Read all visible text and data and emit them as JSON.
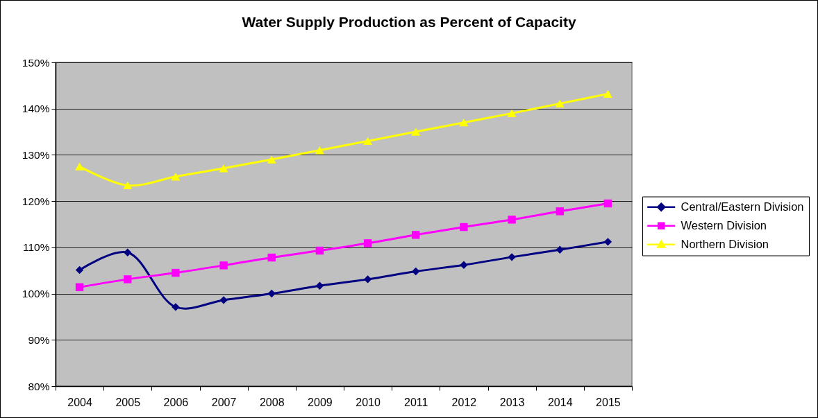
{
  "chart_data": {
    "type": "line",
    "title": "Water Supply Production as Percent of Capacity",
    "categories": [
      "2004",
      "2005",
      "2006",
      "2007",
      "2008",
      "2009",
      "2010",
      "2011",
      "2012",
      "2013",
      "2014",
      "2015"
    ],
    "series": [
      {
        "name": "Central/Eastern Division",
        "color": "#000080",
        "marker": "diamond",
        "values": [
          105.1,
          108.9,
          97.1,
          98.6,
          100.0,
          101.7,
          103.1,
          104.8,
          106.2,
          107.9,
          109.5,
          111.2
        ]
      },
      {
        "name": "Western Division",
        "color": "#ff00ff",
        "marker": "square",
        "values": [
          101.4,
          103.1,
          104.5,
          106.1,
          107.8,
          109.3,
          110.9,
          112.7,
          114.4,
          116.0,
          117.8,
          119.5
        ]
      },
      {
        "name": "Northern Division",
        "color": "#ffff00",
        "marker": "triangle",
        "values": [
          127.5,
          123.4,
          125.3,
          127.1,
          129.0,
          131.0,
          133.0,
          135.0,
          137.0,
          139.0,
          141.1,
          143.2
        ]
      }
    ],
    "ylim": [
      80,
      150
    ],
    "yticks": [
      {
        "value": 80,
        "label": "80%"
      },
      {
        "value": 90,
        "label": "90%"
      },
      {
        "value": 100,
        "label": "100%"
      },
      {
        "value": 110,
        "label": "110%"
      },
      {
        "value": 120,
        "label": "120%"
      },
      {
        "value": 130,
        "label": "130%"
      },
      {
        "value": 140,
        "label": "140%"
      },
      {
        "value": 150,
        "label": "150%"
      }
    ],
    "grid": "y",
    "legend": "right"
  }
}
